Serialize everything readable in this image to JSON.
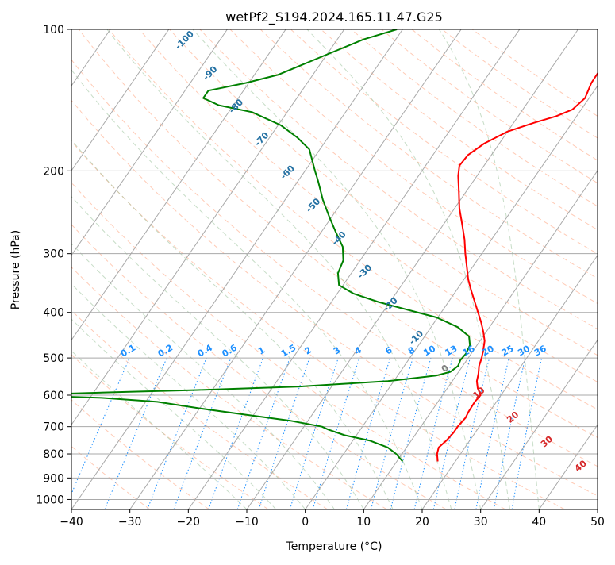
{
  "chart_data": {
    "type": "skew-t",
    "title": "wetPf2_S194.2024.165.11.47.G25",
    "xlabel": "Temperature (°C)",
    "ylabel": "Pressure (hPa)",
    "xlim": [
      -40,
      50
    ],
    "ylim": [
      1050,
      100
    ],
    "y_scale": "log",
    "grid": true,
    "x_ticks": [
      -40,
      -30,
      -20,
      -10,
      0,
      10,
      20,
      30,
      40,
      50
    ],
    "y_ticks": [
      100,
      200,
      300,
      400,
      500,
      600,
      700,
      800,
      900,
      1000
    ],
    "colors": {
      "temperature": "#ff0000",
      "dewpoint": "#008000",
      "isotherm_grid": "#a9a9a9",
      "dry_adiabats": "#ffa07a",
      "moist_adiabats": "#8fbc8f",
      "mixing_ratio_lines": "#1e90ff",
      "mixing_ratio_labels": "#1e90ff",
      "dewpoint_depression_labels": "#2471a3",
      "dry_adiabat_labels": "#d62728",
      "zero_label": "#7f7f7f"
    },
    "series": [
      {
        "name": "Temperature",
        "points": [
          [
            830,
            17.0
          ],
          [
            800,
            16.0
          ],
          [
            775,
            15.5
          ],
          [
            750,
            16.0
          ],
          [
            720,
            16.3
          ],
          [
            700,
            16.3
          ],
          [
            670,
            16.6
          ],
          [
            650,
            16.4
          ],
          [
            620,
            16.3
          ],
          [
            600,
            16.5
          ],
          [
            580,
            15.2
          ],
          [
            560,
            14.2
          ],
          [
            540,
            13.6
          ],
          [
            520,
            12.8
          ],
          [
            500,
            12.3
          ],
          [
            480,
            11.6
          ],
          [
            460,
            10.8
          ],
          [
            440,
            9.5
          ],
          [
            420,
            8.0
          ],
          [
            400,
            6.3
          ],
          [
            380,
            4.5
          ],
          [
            360,
            2.6
          ],
          [
            340,
            0.7
          ],
          [
            320,
            -1.0
          ],
          [
            300,
            -2.8
          ],
          [
            280,
            -4.6
          ],
          [
            260,
            -6.8
          ],
          [
            240,
            -9.2
          ],
          [
            220,
            -11.4
          ],
          [
            205,
            -13.2
          ],
          [
            195,
            -14.2
          ],
          [
            185,
            -14.0
          ],
          [
            175,
            -12.6
          ],
          [
            165,
            -10.0
          ],
          [
            158,
            -6.5
          ],
          [
            153,
            -3.5
          ],
          [
            148,
            -1.5
          ],
          [
            140,
            -0.7
          ],
          [
            130,
            -1.4
          ],
          [
            120,
            -1.5
          ],
          [
            110,
            -2.2
          ],
          [
            100,
            -3.7
          ]
        ]
      },
      {
        "name": "Dewpoint",
        "points": [
          [
            830,
            11.0
          ],
          [
            800,
            9.0
          ],
          [
            775,
            6.8
          ],
          [
            750,
            3.0
          ],
          [
            730,
            -2.0
          ],
          [
            710,
            -5.5
          ],
          [
            700,
            -6.9
          ],
          [
            680,
            -13.0
          ],
          [
            660,
            -21.5
          ],
          [
            640,
            -30.0
          ],
          [
            620,
            -38.0
          ],
          [
            608,
            -48.0
          ],
          [
            603,
            -56.5
          ],
          [
            598,
            -59.0
          ],
          [
            595,
            -54.0
          ],
          [
            590,
            -44.0
          ],
          [
            585,
            -32.5
          ],
          [
            575,
            -15.5
          ],
          [
            560,
            -1.0
          ],
          [
            545,
            6.6
          ],
          [
            535,
            8.6
          ],
          [
            520,
            9.2
          ],
          [
            505,
            8.9
          ],
          [
            490,
            9.1
          ],
          [
            470,
            8.8
          ],
          [
            450,
            7.6
          ],
          [
            430,
            4.6
          ],
          [
            410,
            -0.2
          ],
          [
            395,
            -6.0
          ],
          [
            380,
            -12.0
          ],
          [
            365,
            -17.2
          ],
          [
            350,
            -20.7
          ],
          [
            330,
            -22.3
          ],
          [
            310,
            -22.9
          ],
          [
            290,
            -24.6
          ],
          [
            270,
            -27.5
          ],
          [
            250,
            -30.5
          ],
          [
            230,
            -33.6
          ],
          [
            210,
            -36.6
          ],
          [
            200,
            -38.3
          ],
          [
            190,
            -40.0
          ],
          [
            180,
            -41.8
          ],
          [
            170,
            -45.2
          ],
          [
            160,
            -49.5
          ],
          [
            150,
            -56.0
          ],
          [
            145,
            -62.5
          ],
          [
            140,
            -66.0
          ],
          [
            135,
            -66.0
          ],
          [
            130,
            -60.5
          ],
          [
            125,
            -56.0
          ],
          [
            115,
            -51.0
          ],
          [
            105,
            -45.5
          ],
          [
            100,
            -41.0
          ]
        ]
      }
    ],
    "dewpoint_depression_labels": [
      "-100",
      "-90",
      "-80",
      "-70",
      "-60",
      "-50",
      "-40",
      "-30",
      "-20",
      "-10"
    ],
    "mixing_ratio_labels": [
      "0.1",
      "0.2",
      "0.4",
      "0.6",
      "1",
      "1.5",
      "2",
      "3",
      "4",
      "6",
      "8",
      "10",
      "13",
      "16",
      "20",
      "25",
      "30",
      "36"
    ],
    "dry_adiabat_labels": [
      "0",
      "10",
      "20",
      "30",
      "40"
    ]
  }
}
